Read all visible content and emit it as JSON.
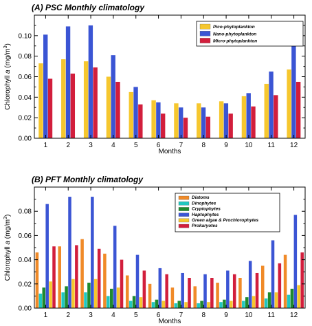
{
  "chart_data": [
    {
      "type": "bar",
      "title": "(A) PSC Monthly climatology",
      "xlabel": "Months",
      "ylabel": "Chlorophyll a (mg/m3)",
      "ylabel_main": "Chlorophyll ",
      "ylabel_italic": "a",
      "ylabel_unit": " (mg/m",
      "ylabel_sup": "3",
      "ylabel_close": ")",
      "ylim": [
        0,
        0.12
      ],
      "yticks": [
        "0.00",
        "0.02",
        "0.04",
        "0.06",
        "0.08",
        "0.10"
      ],
      "ytick_values": [
        0,
        0.02,
        0.04,
        0.06,
        0.08,
        0.1
      ],
      "categories": [
        "1",
        "2",
        "3",
        "4",
        "5",
        "6",
        "7",
        "8",
        "9",
        "10",
        "11",
        "12"
      ],
      "legend_position": "top-right",
      "series": [
        {
          "name": "Pico-phytoplankton",
          "color": "#f6c72e",
          "values": [
            0.073,
            0.077,
            0.075,
            0.06,
            0.045,
            0.037,
            0.034,
            0.034,
            0.036,
            0.041,
            0.053,
            0.067
          ]
        },
        {
          "name": "Nano-phytoplankton",
          "color": "#3b55d4",
          "values": [
            0.101,
            0.109,
            0.11,
            0.081,
            0.05,
            0.035,
            0.03,
            0.03,
            0.034,
            0.044,
            0.065,
            0.091
          ]
        },
        {
          "name": "Micro-phytoplankton",
          "color": "#d21e3c",
          "values": [
            0.058,
            0.063,
            0.069,
            0.055,
            0.033,
            0.024,
            0.02,
            0.021,
            0.024,
            0.031,
            0.042,
            0.055
          ]
        }
      ]
    },
    {
      "type": "bar",
      "title": "(B) PFT Monthly climatology",
      "xlabel": "Months",
      "ylabel": "Chlorophyll a (mg/m3)",
      "ylabel_main": "Chlorophyll ",
      "ylabel_italic": "a",
      "ylabel_unit": " (mg/m",
      "ylabel_sup": "3",
      "ylabel_close": ")",
      "ylim": [
        0,
        0.1
      ],
      "yticks": [
        "0.00",
        "0.02",
        "0.04",
        "0.06",
        "0.08"
      ],
      "ytick_values": [
        0,
        0.02,
        0.04,
        0.06,
        0.08
      ],
      "categories": [
        "1",
        "2",
        "3",
        "4",
        "5",
        "6",
        "7",
        "8",
        "9",
        "10",
        "11",
        "12"
      ],
      "legend_position": "top-center",
      "series": [
        {
          "name": "Diatoms",
          "color": "#f08a28",
          "values": [
            0.046,
            0.051,
            0.057,
            0.045,
            0.027,
            0.02,
            0.017,
            0.018,
            0.021,
            0.025,
            0.035,
            0.044
          ]
        },
        {
          "name": "Dinophytes",
          "color": "#20c7c0",
          "values": [
            0.012,
            0.013,
            0.013,
            0.01,
            0.006,
            0.005,
            0.004,
            0.004,
            0.005,
            0.006,
            0.008,
            0.011
          ]
        },
        {
          "name": "Cryptophytes",
          "color": "#1e8a2e",
          "values": [
            0.017,
            0.018,
            0.021,
            0.016,
            0.01,
            0.007,
            0.006,
            0.006,
            0.007,
            0.009,
            0.013,
            0.016
          ]
        },
        {
          "name": "Haptophytes",
          "color": "#3b55d4",
          "values": [
            0.086,
            0.092,
            0.092,
            0.068,
            0.044,
            0.033,
            0.029,
            0.028,
            0.031,
            0.039,
            0.056,
            0.077
          ]
        },
        {
          "name": "Green algae & Prochlorophytes",
          "color": "#f6c72e",
          "values": [
            0.022,
            0.024,
            0.024,
            0.017,
            0.009,
            0.006,
            0.005,
            0.005,
            0.006,
            0.01,
            0.013,
            0.019
          ]
        },
        {
          "name": "Prokaryotes",
          "color": "#d21e3c",
          "values": [
            0.051,
            0.052,
            0.049,
            0.04,
            0.031,
            0.028,
            0.025,
            0.025,
            0.028,
            0.029,
            0.037,
            0.046
          ]
        }
      ]
    }
  ]
}
